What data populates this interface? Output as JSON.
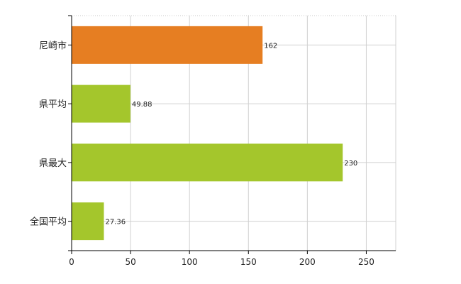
{
  "chart_data": {
    "type": "bar",
    "orientation": "horizontal",
    "categories": [
      "尼崎市",
      "県平均",
      "県最大",
      "全国平均"
    ],
    "values": [
      162,
      49.88,
      230,
      27.36
    ],
    "value_labels": [
      "162",
      "49.88",
      "230",
      "27.36"
    ],
    "bar_colors": [
      "#e67e22",
      "#a4c62c",
      "#a4c62c",
      "#a4c62c"
    ],
    "xlim": [
      0,
      275
    ],
    "xticks": [
      0,
      50,
      100,
      150,
      200,
      250
    ],
    "xtick_labels": [
      "0",
      "50",
      "100",
      "150",
      "200",
      "250"
    ],
    "grid": true,
    "title": "",
    "xlabel": "",
    "ylabel": ""
  }
}
